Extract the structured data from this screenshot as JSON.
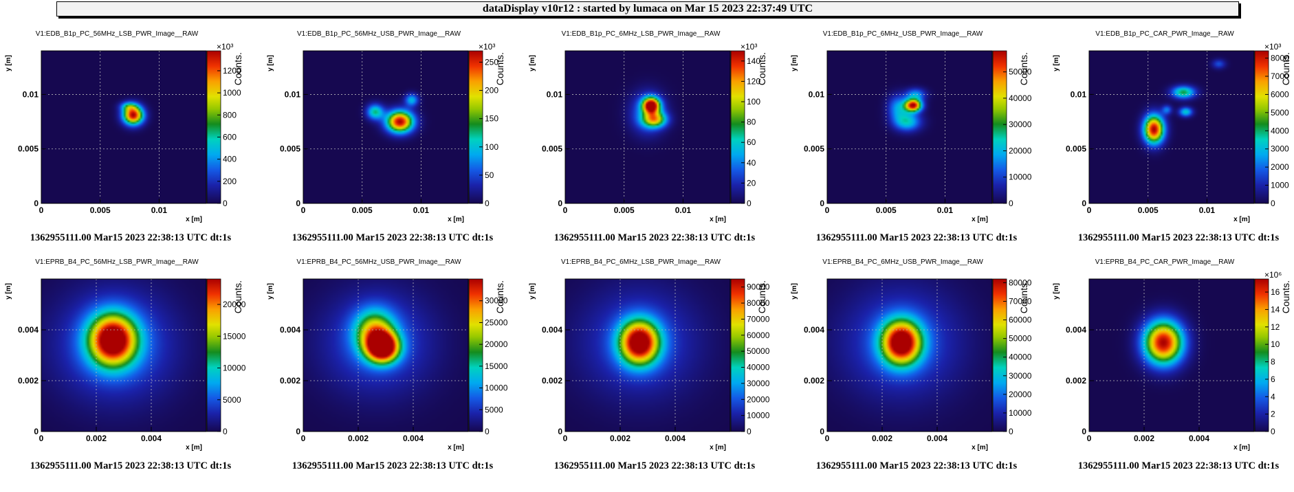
{
  "banner": {
    "text": "dataDisplay v10r12 : started by lumaca on Mar 15 2023 22:37:49 UTC"
  },
  "colors": {
    "background": "#1b0a4a",
    "grid": "#bbbbbb"
  },
  "chart_data": [
    {
      "type": "heatmap",
      "title": "V1:EDB_B1p_PC_56MHz_LSB_PWR_Image__RAW",
      "xlabel": "x [m]",
      "ylabel": "y [m]",
      "zlabel": "Counts.",
      "xlim": [
        0,
        0.014
      ],
      "ylim": [
        0,
        0.014
      ],
      "xticks": [
        "0",
        "0.005",
        "0.01"
      ],
      "yticks": [
        "0",
        "0.005",
        "0.01"
      ],
      "xtick_values": [
        0,
        0.005,
        0.01
      ],
      "ytick_values": [
        0,
        0.005,
        0.01
      ],
      "zlim": [
        0,
        1380
      ],
      "zticks": [
        "0",
        "200",
        "400",
        "600",
        "800",
        "1000",
        "1200"
      ],
      "zexponent": "×10³",
      "timestamp": "1362955111.00 Mar15 2023 22:38:13 UTC dt:1s",
      "blobs": [
        {
          "x": 0.0078,
          "y": 0.0081,
          "sx": 0.0006,
          "sy": 0.0006,
          "a": 1.0
        },
        {
          "x": 0.0074,
          "y": 0.0089,
          "sx": 0.0005,
          "sy": 0.0003,
          "a": 0.3
        }
      ]
    },
    {
      "type": "heatmap",
      "title": "V1:EDB_B1p_PC_56MHz_USB_PWR_Image__RAW",
      "xlabel": "x [m]",
      "ylabel": "y [m]",
      "zlabel": "Counts.",
      "xlim": [
        0,
        0.014
      ],
      "ylim": [
        0,
        0.014
      ],
      "xticks": [
        "0",
        "0.005",
        "0.01"
      ],
      "yticks": [
        "0",
        "0.005",
        "0.01"
      ],
      "xtick_values": [
        0,
        0.005,
        0.01
      ],
      "ytick_values": [
        0,
        0.005,
        0.01
      ],
      "zlim": [
        0,
        270
      ],
      "zticks": [
        "0",
        "50",
        "100",
        "150",
        "200",
        "250"
      ],
      "zexponent": "×10³",
      "timestamp": "1362955111.00 Mar15 2023 22:38:13 UTC dt:1s",
      "blobs": [
        {
          "x": 0.0082,
          "y": 0.0075,
          "sx": 0.0008,
          "sy": 0.0007,
          "a": 1.0
        },
        {
          "x": 0.0061,
          "y": 0.0084,
          "sx": 0.0005,
          "sy": 0.0005,
          "a": 0.45
        },
        {
          "x": 0.0092,
          "y": 0.0095,
          "sx": 0.0004,
          "sy": 0.0004,
          "a": 0.35
        }
      ]
    },
    {
      "type": "heatmap",
      "title": "V1:EDB_B1p_PC_6MHz_LSB_PWR_Image__RAW",
      "xlabel": "x [m]",
      "ylabel": "y [m]",
      "zlabel": "Counts.",
      "xlim": [
        0,
        0.014
      ],
      "ylim": [
        0,
        0.014
      ],
      "xticks": [
        "0",
        "0.005",
        "0.01"
      ],
      "yticks": [
        "0",
        "0.005",
        "0.01"
      ],
      "xtick_values": [
        0,
        0.005,
        0.01
      ],
      "ytick_values": [
        0,
        0.005,
        0.01
      ],
      "zlim": [
        0,
        150
      ],
      "zticks": [
        "0",
        "20",
        "40",
        "60",
        "80",
        "100",
        "120",
        "140"
      ],
      "zexponent": "×10³",
      "timestamp": "1362955111.00 Mar15 2023 22:38:13 UTC dt:1s",
      "blobs": [
        {
          "x": 0.0073,
          "y": 0.009,
          "sx": 0.0005,
          "sy": 0.0005,
          "a": 1.0
        },
        {
          "x": 0.0076,
          "y": 0.0077,
          "sx": 0.0007,
          "sy": 0.0005,
          "a": 0.6
        },
        {
          "x": 0.007,
          "y": 0.0083,
          "sx": 0.001,
          "sy": 0.0013,
          "a": 0.3
        }
      ]
    },
    {
      "type": "heatmap",
      "title": "V1:EDB_B1p_PC_6MHz_USB_PWR_Image__RAW",
      "xlabel": "x [m]",
      "ylabel": "y [m]",
      "zlabel": "Counts.",
      "xlim": [
        0,
        0.014
      ],
      "ylim": [
        0,
        0.014
      ],
      "xticks": [
        "0",
        "0.005",
        "0.01"
      ],
      "yticks": [
        "0",
        "0.005",
        "0.01"
      ],
      "xtick_values": [
        0,
        0.005,
        0.01
      ],
      "ytick_values": [
        0,
        0.005,
        0.01
      ],
      "zlim": [
        0,
        58000
      ],
      "zticks": [
        "0",
        "10000",
        "20000",
        "30000",
        "40000",
        "50000"
      ],
      "zexponent": "",
      "timestamp": "1362955111.00 Mar15 2023 22:38:13 UTC dt:1s",
      "blobs": [
        {
          "x": 0.0073,
          "y": 0.009,
          "sx": 0.0005,
          "sy": 0.0004,
          "a": 1.0
        },
        {
          "x": 0.0068,
          "y": 0.0075,
          "sx": 0.0008,
          "sy": 0.0006,
          "a": 0.4
        },
        {
          "x": 0.006,
          "y": 0.0088,
          "sx": 0.0006,
          "sy": 0.0008,
          "a": 0.3
        },
        {
          "x": 0.0075,
          "y": 0.01,
          "sx": 0.0006,
          "sy": 0.0004,
          "a": 0.3
        }
      ]
    },
    {
      "type": "heatmap",
      "title": "V1:EDB_B1p_PC_CAR_PWR_Image__RAW",
      "xlabel": "x [m]",
      "ylabel": "y [m]",
      "zlabel": "Counts.",
      "xlim": [
        0,
        0.014
      ],
      "ylim": [
        0,
        0.014
      ],
      "xticks": [
        "0",
        "0.005",
        "0.01"
      ],
      "yticks": [
        "0",
        "0.005",
        "0.01"
      ],
      "xtick_values": [
        0,
        0.005,
        0.01
      ],
      "ytick_values": [
        0,
        0.005,
        0.01
      ],
      "zlim": [
        0,
        8400
      ],
      "zticks": [
        "0",
        "1000",
        "2000",
        "3000",
        "4000",
        "5000",
        "6000",
        "7000",
        "8000"
      ],
      "zexponent": "×10³",
      "timestamp": "1362955111.00 Mar15 2023 22:38:13 UTC dt:1s",
      "blobs": [
        {
          "x": 0.0055,
          "y": 0.0068,
          "sx": 0.0006,
          "sy": 0.0009,
          "a": 1.0
        },
        {
          "x": 0.008,
          "y": 0.0102,
          "sx": 0.0007,
          "sy": 0.0004,
          "a": 0.5
        },
        {
          "x": 0.0082,
          "y": 0.0084,
          "sx": 0.0004,
          "sy": 0.0003,
          "a": 0.4
        },
        {
          "x": 0.0066,
          "y": 0.0086,
          "sx": 0.0003,
          "sy": 0.0003,
          "a": 0.25
        },
        {
          "x": 0.011,
          "y": 0.0128,
          "sx": 0.0004,
          "sy": 0.0003,
          "a": 0.2
        }
      ]
    },
    {
      "type": "heatmap",
      "title": "V1:EPRB_B4_PC_56MHz_LSB_PWR_Image__RAW",
      "xlabel": "x [m]",
      "ylabel": "y [m]",
      "zlabel": "Counts.",
      "xlim": [
        0,
        0.006
      ],
      "ylim": [
        0,
        0.006
      ],
      "xticks": [
        "0",
        "0.002",
        "0.004"
      ],
      "yticks": [
        "0",
        "0.002",
        "0.004"
      ],
      "xtick_values": [
        0,
        0.002,
        0.004
      ],
      "ytick_values": [
        0,
        0.002,
        0.004
      ],
      "zlim": [
        0,
        24000
      ],
      "zticks": [
        "0",
        "5000",
        "10000",
        "15000",
        "20000"
      ],
      "zexponent": "",
      "timestamp": "1362955111.00 Mar15 2023 22:38:13 UTC dt:1s",
      "blobs": [
        {
          "x": 0.0026,
          "y": 0.0036,
          "sx": 0.0006,
          "sy": 0.0007,
          "a": 1.0
        },
        {
          "x": 0.0027,
          "y": 0.0034,
          "sx": 0.0015,
          "sy": 0.0015,
          "a": 0.25
        }
      ]
    },
    {
      "type": "heatmap",
      "title": "V1:EPRB_B4_PC_56MHz_USB_PWR_Image__RAW",
      "xlabel": "x [m]",
      "ylabel": "y [m]",
      "zlabel": "Counts.",
      "xlim": [
        0,
        0.006
      ],
      "ylim": [
        0,
        0.006
      ],
      "xticks": [
        "0",
        "0.002",
        "0.004"
      ],
      "yticks": [
        "0",
        "0.002",
        "0.004"
      ],
      "xtick_values": [
        0,
        0.002,
        0.004
      ],
      "ytick_values": [
        0,
        0.002,
        0.004
      ],
      "zlim": [
        0,
        35000
      ],
      "zticks": [
        "0",
        "5000",
        "10000",
        "15000",
        "20000",
        "25000",
        "30000"
      ],
      "zexponent": "",
      "timestamp": "1362955111.00 Mar15 2023 22:38:13 UTC dt:1s",
      "blobs": [
        {
          "x": 0.0029,
          "y": 0.0033,
          "sx": 0.0004,
          "sy": 0.0004,
          "a": 1.0
        },
        {
          "x": 0.0026,
          "y": 0.0039,
          "sx": 0.0005,
          "sy": 0.0006,
          "a": 0.6
        },
        {
          "x": 0.0027,
          "y": 0.0035,
          "sx": 0.0014,
          "sy": 0.0014,
          "a": 0.22
        }
      ]
    },
    {
      "type": "heatmap",
      "title": "V1:EPRB_B4_PC_6MHz_LSB_PWR_Image__RAW",
      "xlabel": "x [m]",
      "ylabel": "y [m]",
      "zlabel": "Counts.",
      "xlim": [
        0,
        0.006
      ],
      "ylim": [
        0,
        0.006
      ],
      "xticks": [
        "0",
        "0.002",
        "0.004"
      ],
      "yticks": [
        "0",
        "0.002",
        "0.004"
      ],
      "xtick_values": [
        0,
        0.002,
        0.004
      ],
      "ytick_values": [
        0,
        0.002,
        0.004
      ],
      "zlim": [
        0,
        95000
      ],
      "zticks": [
        "0",
        "10000",
        "20000",
        "30000",
        "40000",
        "50000",
        "60000",
        "70000",
        "80000",
        "90000"
      ],
      "zexponent": "",
      "timestamp": "1362955111.00 Mar15 2023 22:38:13 UTC dt:1s",
      "blobs": [
        {
          "x": 0.0027,
          "y": 0.0035,
          "sx": 0.0005,
          "sy": 0.0006,
          "a": 1.0
        },
        {
          "x": 0.0027,
          "y": 0.0035,
          "sx": 0.0015,
          "sy": 0.0015,
          "a": 0.2
        }
      ]
    },
    {
      "type": "heatmap",
      "title": "V1:EPRB_B4_PC_6MHz_USB_PWR_Image__RAW",
      "xlabel": "x [m]",
      "ylabel": "y [m]",
      "zlabel": "Counts.",
      "xlim": [
        0,
        0.006
      ],
      "ylim": [
        0,
        0.006
      ],
      "xticks": [
        "0",
        "0.002",
        "0.004"
      ],
      "yticks": [
        "0",
        "0.002",
        "0.004"
      ],
      "xtick_values": [
        0,
        0.002,
        0.004
      ],
      "ytick_values": [
        0,
        0.002,
        0.004
      ],
      "zlim": [
        0,
        82000
      ],
      "zticks": [
        "0",
        "10000",
        "20000",
        "30000",
        "40000",
        "50000",
        "60000",
        "70000",
        "80000"
      ],
      "zexponent": "",
      "timestamp": "1362955111.00 Mar15 2023 22:38:13 UTC dt:1s",
      "blobs": [
        {
          "x": 0.0027,
          "y": 0.0035,
          "sx": 0.0005,
          "sy": 0.0006,
          "a": 1.0
        },
        {
          "x": 0.0027,
          "y": 0.0035,
          "sx": 0.0015,
          "sy": 0.0015,
          "a": 0.22
        }
      ]
    },
    {
      "type": "heatmap",
      "title": "V1:EPRB_B4_PC_CAR_PWR_Image__RAW",
      "xlabel": "x [m]",
      "ylabel": "y [m]",
      "zlabel": "Counts.",
      "xlim": [
        0,
        0.006
      ],
      "ylim": [
        0,
        0.006
      ],
      "xticks": [
        "0",
        "0.002",
        "0.004"
      ],
      "yticks": [
        "0",
        "0.002",
        "0.004"
      ],
      "xtick_values": [
        0,
        0.002,
        0.004
      ],
      "ytick_values": [
        0,
        0.002,
        0.004
      ],
      "zlim": [
        0,
        17.5
      ],
      "zticks": [
        "0",
        "2",
        "4",
        "6",
        "8",
        "10",
        "12",
        "14",
        "16"
      ],
      "zexponent": "×10⁶",
      "timestamp": "1362955111.00 Mar15 2023 22:38:13 UTC dt:1s",
      "blobs": [
        {
          "x": 0.0027,
          "y": 0.0035,
          "sx": 0.0005,
          "sy": 0.0006,
          "a": 1.0
        }
      ]
    }
  ]
}
